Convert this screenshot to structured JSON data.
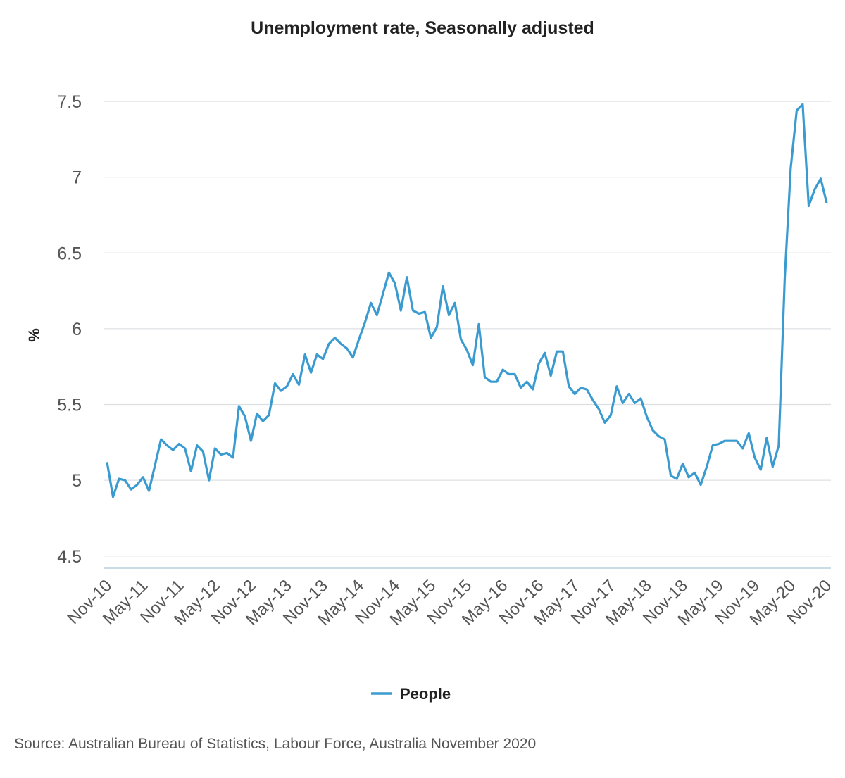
{
  "chart_data": {
    "type": "line",
    "title": "Unemployment rate, Seasonally adjusted",
    "y_label": "%",
    "source": "Source: Australian Bureau of Statistics, Labour Force, Australia November 2020",
    "categories": [
      "Nov-10",
      null,
      null,
      null,
      null,
      null,
      "May-11",
      null,
      null,
      null,
      null,
      null,
      "Nov-11",
      null,
      null,
      null,
      null,
      null,
      "May-12",
      null,
      null,
      null,
      null,
      null,
      "Nov-12",
      null,
      null,
      null,
      null,
      null,
      "May-13",
      null,
      null,
      null,
      null,
      null,
      "Nov-13",
      null,
      null,
      null,
      null,
      null,
      "May-14",
      null,
      null,
      null,
      null,
      null,
      "Nov-14",
      null,
      null,
      null,
      null,
      null,
      "May-15",
      null,
      null,
      null,
      null,
      null,
      "Nov-15",
      null,
      null,
      null,
      null,
      null,
      "May-16",
      null,
      null,
      null,
      null,
      null,
      "Nov-16",
      null,
      null,
      null,
      null,
      null,
      "May-17",
      null,
      null,
      null,
      null,
      null,
      "Nov-17",
      null,
      null,
      null,
      null,
      null,
      "May-18",
      null,
      null,
      null,
      null,
      null,
      "Nov-18",
      null,
      null,
      null,
      null,
      null,
      "May-19",
      null,
      null,
      null,
      null,
      null,
      "Nov-19",
      null,
      null,
      null,
      null,
      null,
      "May-20",
      null,
      null,
      null,
      null,
      null,
      "Nov-20"
    ],
    "series": [
      {
        "name": "People",
        "color": "#3a9bd0",
        "values": [
          5.12,
          4.89,
          5.01,
          5.0,
          4.94,
          4.97,
          5.02,
          4.93,
          5.1,
          5.27,
          5.23,
          5.2,
          5.24,
          5.21,
          5.06,
          5.23,
          5.19,
          5.0,
          5.21,
          5.17,
          5.18,
          5.15,
          5.49,
          5.42,
          5.26,
          5.44,
          5.39,
          5.43,
          5.64,
          5.59,
          5.62,
          5.7,
          5.63,
          5.83,
          5.71,
          5.83,
          5.8,
          5.9,
          5.94,
          5.9,
          5.87,
          5.81,
          5.93,
          6.04,
          6.17,
          6.09,
          6.23,
          6.37,
          6.3,
          6.12,
          6.34,
          6.12,
          6.1,
          6.11,
          5.94,
          6.01,
          6.28,
          6.09,
          6.17,
          5.93,
          5.86,
          5.76,
          6.03,
          5.68,
          5.65,
          5.65,
          5.73,
          5.7,
          5.7,
          5.61,
          5.65,
          5.6,
          5.77,
          5.84,
          5.69,
          5.85,
          5.85,
          5.62,
          5.57,
          5.61,
          5.6,
          5.53,
          5.47,
          5.38,
          5.43,
          5.62,
          5.51,
          5.57,
          5.51,
          5.54,
          5.42,
          5.33,
          5.29,
          5.27,
          5.03,
          5.01,
          5.11,
          5.02,
          5.05,
          4.97,
          5.09,
          5.23,
          5.24,
          5.26,
          5.26,
          5.26,
          5.21,
          5.31,
          5.15,
          5.07,
          5.28,
          5.09,
          5.23,
          6.33,
          7.06,
          7.44,
          7.48,
          6.81,
          6.92,
          6.99,
          6.83
        ]
      }
    ],
    "ylim": [
      4.42,
      7.5
    ],
    "yticks": [
      4.5,
      5,
      5.5,
      6,
      6.5,
      7,
      7.5
    ],
    "grid": true
  }
}
